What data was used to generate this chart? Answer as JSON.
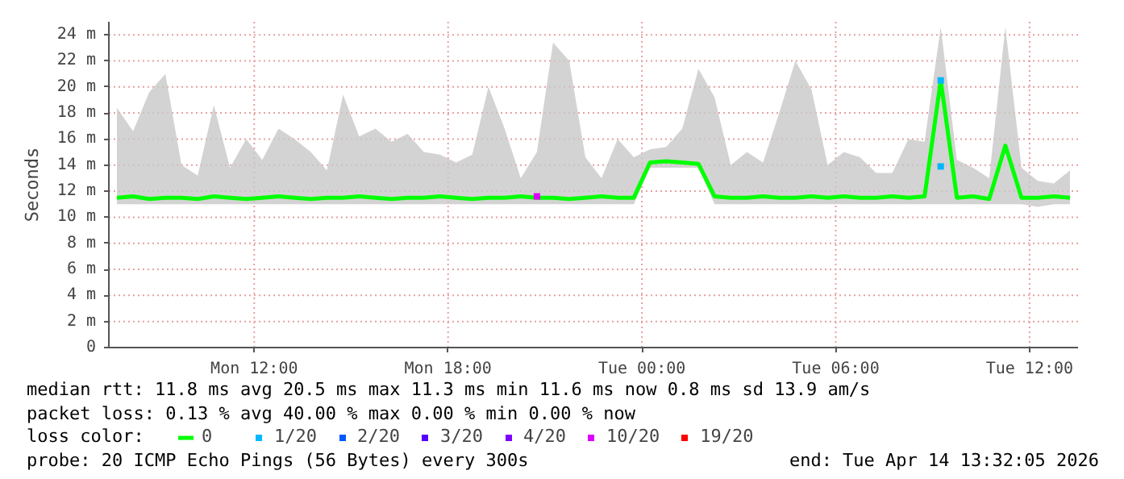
{
  "chart_data": {
    "type": "line",
    "ylabel": "Seconds",
    "legend_title": "loss color:",
    "legend": "bottom",
    "grid": true,
    "xlim": [
      "2026-04-13T07:30",
      "2026-04-14T13:30"
    ],
    "xticks": [
      {
        "value": "2026-04-13T12:00",
        "label": "Mon 12:00"
      },
      {
        "value": "2026-04-13T18:00",
        "label": "Mon 18:00"
      },
      {
        "value": "2026-04-14T00:00",
        "label": "Tue 00:00"
      },
      {
        "value": "2026-04-14T06:00",
        "label": "Tue 06:00"
      },
      {
        "value": "2026-04-14T12:00",
        "label": "Tue 12:00"
      }
    ],
    "ylim": [
      0,
      25
    ],
    "yticks": [
      0,
      {
        "value": 2,
        "label": "2 m"
      },
      {
        "value": 4,
        "label": "4 m"
      },
      {
        "value": 6,
        "label": "6 m"
      },
      {
        "value": 8,
        "label": "8 m"
      },
      {
        "value": 10,
        "label": "10 m"
      },
      {
        "value": 12,
        "label": "12 m"
      },
      {
        "value": 14,
        "label": "14 m"
      },
      {
        "value": 16,
        "label": "16 m"
      },
      {
        "value": 18,
        "label": "18 m"
      },
      {
        "value": 20,
        "label": "20 m"
      },
      {
        "value": 22,
        "label": "22 m"
      },
      {
        "value": 24,
        "label": "24 m"
      }
    ],
    "x": [
      "2026-04-13T07:45",
      "2026-04-13T08:15",
      "2026-04-13T08:45",
      "2026-04-13T09:15",
      "2026-04-13T09:45",
      "2026-04-13T10:15",
      "2026-04-13T10:45",
      "2026-04-13T11:15",
      "2026-04-13T11:45",
      "2026-04-13T12:15",
      "2026-04-13T12:45",
      "2026-04-13T13:15",
      "2026-04-13T13:45",
      "2026-04-13T14:15",
      "2026-04-13T14:45",
      "2026-04-13T15:15",
      "2026-04-13T15:45",
      "2026-04-13T16:15",
      "2026-04-13T16:45",
      "2026-04-13T17:15",
      "2026-04-13T17:45",
      "2026-04-13T18:15",
      "2026-04-13T18:45",
      "2026-04-13T19:15",
      "2026-04-13T19:45",
      "2026-04-13T20:15",
      "2026-04-13T20:45",
      "2026-04-13T21:15",
      "2026-04-13T21:45",
      "2026-04-13T22:15",
      "2026-04-13T22:45",
      "2026-04-13T23:15",
      "2026-04-13T23:45",
      "2026-04-14T00:15",
      "2026-04-14T00:45",
      "2026-04-14T01:15",
      "2026-04-14T01:45",
      "2026-04-14T02:15",
      "2026-04-14T02:45",
      "2026-04-14T03:15",
      "2026-04-14T03:45",
      "2026-04-14T04:15",
      "2026-04-14T04:45",
      "2026-04-14T05:15",
      "2026-04-14T05:45",
      "2026-04-14T06:15",
      "2026-04-14T06:45",
      "2026-04-14T07:15",
      "2026-04-14T07:45",
      "2026-04-14T08:15",
      "2026-04-14T08:45",
      "2026-04-14T09:15",
      "2026-04-14T09:45",
      "2026-04-14T10:15",
      "2026-04-14T10:45",
      "2026-04-14T11:15",
      "2026-04-14T11:45",
      "2026-04-14T12:15",
      "2026-04-14T12:45",
      "2026-04-14T13:15"
    ],
    "series": [
      {
        "name": "0",
        "color": "#00ff00",
        "values": [
          11.5,
          11.6,
          11.4,
          11.5,
          11.5,
          11.4,
          11.6,
          11.5,
          11.4,
          11.5,
          11.6,
          11.5,
          11.4,
          11.5,
          11.5,
          11.6,
          11.5,
          11.4,
          11.5,
          11.5,
          11.6,
          11.5,
          11.4,
          11.5,
          11.5,
          11.6,
          11.5,
          11.5,
          11.4,
          11.5,
          11.6,
          11.5,
          11.5,
          14.2,
          14.3,
          14.2,
          14.1,
          11.6,
          11.5,
          11.5,
          11.6,
          11.5,
          11.5,
          11.6,
          11.5,
          11.6,
          11.5,
          11.5,
          11.6,
          11.5,
          11.6,
          20.5,
          11.5,
          11.6,
          11.4,
          15.5,
          11.5,
          11.5,
          11.6,
          11.5
        ],
        "lower": [
          11,
          11,
          11,
          11,
          11,
          11,
          11,
          11,
          11,
          11,
          11,
          11,
          11,
          11,
          11,
          11,
          11,
          11,
          11,
          11,
          11,
          11,
          11,
          11,
          11,
          11,
          11,
          11,
          11,
          11,
          11,
          11,
          11,
          13.8,
          13.8,
          13.8,
          13.8,
          11,
          11,
          11,
          11,
          11,
          11,
          11,
          11,
          11,
          11,
          11,
          11,
          11,
          11,
          11,
          11,
          11,
          11,
          11,
          11,
          10.8,
          11,
          11
        ],
        "upper": [
          18.4,
          16.6,
          19.6,
          21,
          14,
          13.2,
          18.6,
          13.8,
          16,
          14.4,
          16.8,
          16,
          15,
          13.6,
          19.4,
          16.2,
          16.8,
          15.8,
          16.4,
          15,
          14.8,
          14.2,
          14.8,
          20,
          16.8,
          13,
          15,
          23.4,
          22,
          14.6,
          13,
          16,
          14.6,
          15.2,
          15.4,
          16.8,
          21.4,
          19.2,
          14,
          15,
          14.2,
          18,
          22,
          19.8,
          14,
          15,
          14.6,
          13.4,
          13.4,
          16,
          15.8,
          24.6,
          14.4,
          13.8,
          13,
          24.6,
          13.8,
          12.8,
          12.6,
          13.6
        ]
      },
      {
        "name": "1/20",
        "color": "#00b8ff",
        "type": "scatter",
        "marker": "square",
        "x": [
          "2026-04-14T09:15",
          "2026-04-14T09:15"
        ],
        "values": [
          13.9,
          20.5
        ]
      },
      {
        "name": "2/20",
        "color": "#0059ff",
        "type": "scatter",
        "values": [
          null,
          null,
          null,
          null,
          null,
          null,
          null,
          null,
          null,
          null,
          null,
          null,
          null,
          null,
          null,
          null,
          null,
          null,
          null,
          null,
          null,
          null,
          null,
          null,
          null,
          null,
          null,
          null,
          null,
          null,
          null,
          null,
          null,
          null,
          null,
          null,
          null,
          null,
          null,
          null,
          null,
          null,
          null,
          null,
          null,
          null,
          null,
          null,
          null,
          null,
          null,
          null,
          null,
          null,
          null,
          null,
          null,
          null,
          null,
          null
        ]
      },
      {
        "name": "3/20",
        "color": "#5500ff",
        "type": "scatter",
        "values": [
          null,
          null,
          null,
          null,
          null,
          null,
          null,
          null,
          null,
          null,
          null,
          null,
          null,
          null,
          null,
          null,
          null,
          null,
          null,
          null,
          null,
          null,
          null,
          null,
          null,
          null,
          null,
          null,
          null,
          null,
          null,
          null,
          null,
          null,
          null,
          null,
          null,
          null,
          null,
          null,
          null,
          null,
          null,
          null,
          null,
          null,
          null,
          null,
          null,
          null,
          null,
          null,
          null,
          null,
          null,
          null,
          null,
          null,
          null,
          null
        ]
      },
      {
        "name": "4/20",
        "color": "#7e00ff",
        "type": "scatter",
        "values": [
          null,
          null,
          null,
          null,
          null,
          null,
          null,
          null,
          null,
          null,
          null,
          null,
          null,
          null,
          null,
          null,
          null,
          null,
          null,
          null,
          null,
          null,
          null,
          null,
          null,
          null,
          null,
          null,
          null,
          null,
          null,
          null,
          null,
          null,
          null,
          null,
          null,
          null,
          null,
          null,
          null,
          null,
          null,
          null,
          null,
          null,
          null,
          null,
          null,
          null,
          null,
          null,
          null,
          null,
          null,
          null,
          null,
          null,
          null,
          null
        ]
      },
      {
        "name": "10/20",
        "color": "#dd00ff",
        "type": "scatter",
        "marker": "square",
        "x": [
          "2026-04-13T20:45"
        ],
        "values": [
          11.6
        ]
      },
      {
        "name": "19/20",
        "color": "#ff0000",
        "type": "scatter",
        "values": [
          null,
          null,
          null,
          null,
          null,
          null,
          null,
          null,
          null,
          null,
          null,
          null,
          null,
          null,
          null,
          null,
          null,
          null,
          null,
          null,
          null,
          null,
          null,
          null,
          null,
          null,
          null,
          null,
          null,
          null,
          null,
          null,
          null,
          null,
          null,
          null,
          null,
          null,
          null,
          null,
          null,
          null,
          null,
          null,
          null,
          null,
          null,
          null,
          null,
          null,
          null,
          null,
          null,
          null,
          null,
          null,
          null,
          null,
          null,
          null
        ]
      }
    ],
    "annotations": [
      "median rtt:  11.8 ms avg  20.5 ms max  11.3 ms min  11.6 ms now  0.8 ms sd  13.9   am/s",
      "packet loss: 0.13 % avg  40.00 % max  0.00 % min  0.00 % now",
      "probe:       20 ICMP Echo Pings (56 Bytes) every 300s",
      "end: Tue Apr 14 13:32:05 2026"
    ]
  }
}
